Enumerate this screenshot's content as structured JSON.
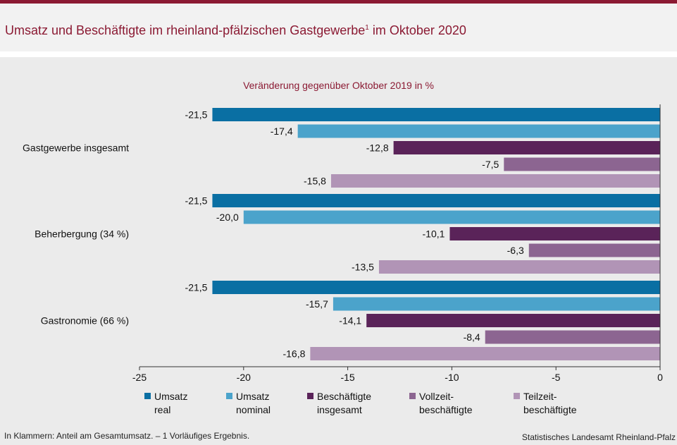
{
  "header": {
    "title": "Umsatz und Beschäftigte im rheinland-pfälzischen Gastgewerbe",
    "title_sup": "1",
    "title_suffix": " im Oktober 2020"
  },
  "colors": {
    "accent": "#8b1a33",
    "background": "#ebebeb"
  },
  "chart_data": {
    "type": "bar",
    "orientation": "horizontal",
    "title": "Umsatz und Beschäftigte im rheinland-pfälzischen Gastgewerbe im Oktober 2020",
    "subtitle": "Veränderung gegenüber Oktober 2019 in %",
    "categories": [
      "Gastgewerbe insgesamt",
      "Beherbergung (34 %)",
      "Gastronomie (66 %)"
    ],
    "series": [
      {
        "name": "Umsatz real",
        "label_lines": [
          "Umsatz",
          "real"
        ],
        "color": "#0a6fa3",
        "values": [
          -21.5,
          -21.5,
          -21.5
        ]
      },
      {
        "name": "Umsatz nominal",
        "label_lines": [
          "Umsatz",
          "nominal"
        ],
        "color": "#4ba3cb",
        "values": [
          -17.4,
          -20.0,
          -15.7
        ]
      },
      {
        "name": "Beschäftigte insgesamt",
        "label_lines": [
          "Beschäftigte",
          "insgesamt"
        ],
        "color": "#5a2359",
        "values": [
          -12.8,
          -10.1,
          -14.1
        ]
      },
      {
        "name": "Vollzeitbeschäftigte",
        "label_lines": [
          "Vollzeit-",
          "beschäftigte"
        ],
        "color": "#8c6591",
        "values": [
          -7.5,
          -6.3,
          -8.4
        ]
      },
      {
        "name": "Teilzeitbeschäftigte",
        "label_lines": [
          "Teilzeit-",
          "beschäftigte"
        ],
        "color": "#b194b6",
        "values": [
          -15.8,
          -13.5,
          -16.8
        ]
      }
    ],
    "value_labels": [
      [
        "-21,5",
        "-17,4",
        "-12,8",
        "-7,5",
        "-15,8"
      ],
      [
        "-21,5",
        "-20,0",
        "-10,1",
        "-6,3",
        "-13,5"
      ],
      [
        "-21,5",
        "-15,7",
        "-14,1",
        "-8,4",
        "-16,8"
      ]
    ],
    "xlim": [
      -25,
      0
    ],
    "xticks": [
      -25,
      -20,
      -15,
      -10,
      -5,
      0
    ],
    "legend_position": "bottom",
    "grid": false
  },
  "footer": {
    "note": "In Klammern: Anteil am Gesamtumsatz. – 1 Vorläufiges Ergebnis.",
    "source": "Statistisches Landesamt Rheinland-Pfalz"
  }
}
